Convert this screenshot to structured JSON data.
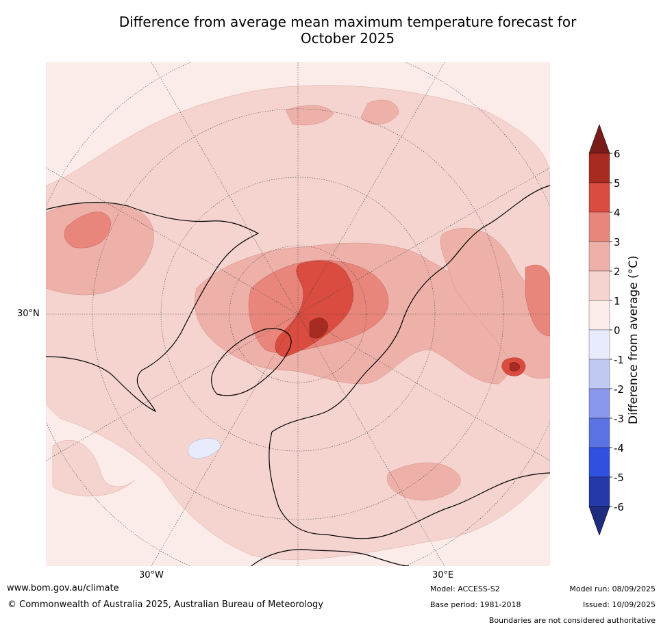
{
  "title_line1": "Difference from average mean maximum temperature forecast for",
  "title_line2": "October 2025",
  "map": {
    "projection": "north-polar",
    "lat_label": "30°N",
    "lon_label_w": "30°W",
    "lon_label_e": "30°E",
    "background_color": "#fbece9"
  },
  "colorbar": {
    "label": "Difference from average ($^\\circ$C)",
    "label_display": "Difference from average (°C)",
    "ticks": [
      "6",
      "5",
      "4",
      "3",
      "2",
      "1",
      "0",
      "-1",
      "-2",
      "-3",
      "-4",
      "-5",
      "-6"
    ],
    "bins": [
      {
        "range": "5 to 6",
        "color": "#a82b22"
      },
      {
        "range": "4 to 5",
        "color": "#d94c3f"
      },
      {
        "range": "3 to 4",
        "color": "#e8867b"
      },
      {
        "range": "2 to 3",
        "color": "#eeb1aa"
      },
      {
        "range": "1 to 2",
        "color": "#f5d4d0"
      },
      {
        "range": "0 to 1",
        "color": "#fbece9"
      },
      {
        "range": "-1 to 0",
        "color": "#e7ebfb"
      },
      {
        "range": "-2 to -1",
        "color": "#c0c9f2"
      },
      {
        "range": "-3 to -2",
        "color": "#8998ec"
      },
      {
        "range": "-4 to -3",
        "color": "#5b72e3"
      },
      {
        "range": "-5 to -4",
        "color": "#3050e0"
      },
      {
        "range": "-6 to -5",
        "color": "#2639a8"
      }
    ],
    "over_color": "#7a1d1a",
    "under_color": "#1e2c80"
  },
  "footer": {
    "website": "www.bom.gov.au/climate",
    "copyright": "© Commonwealth of Australia 2025, Australian Bureau of Meteorology",
    "model": "Model: ACCESS-S2",
    "base_period": "Base period: 1981-2018",
    "model_run": "Model run: 08/09/2025",
    "issued": "Issued: 10/09/2025",
    "boundaries_note": "Boundaries are not considered authoritative"
  }
}
